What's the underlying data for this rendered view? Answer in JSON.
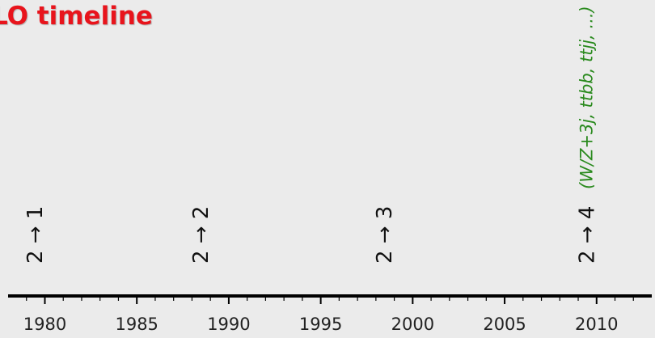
{
  "slide": {
    "title": "LO timeline",
    "title_color": "#e8141c"
  },
  "timeline": {
    "year_min": 1978,
    "year_max": 2013,
    "major_ticks": [
      1980,
      1985,
      1990,
      1995,
      2000,
      2005,
      2010
    ],
    "minor_step": 1,
    "axis_color": "#000000"
  },
  "milestones": [
    {
      "year": 1979.5,
      "label": "2 → 1"
    },
    {
      "year": 1988.5,
      "label": "2 → 2"
    },
    {
      "year": 1998.5,
      "label": "2 → 3"
    },
    {
      "year": 2009.5,
      "label": "2 → 4",
      "note": "(W/Z+3j, ttbb, ttjj, ...)"
    }
  ],
  "note_color": "#2a8a1e"
}
